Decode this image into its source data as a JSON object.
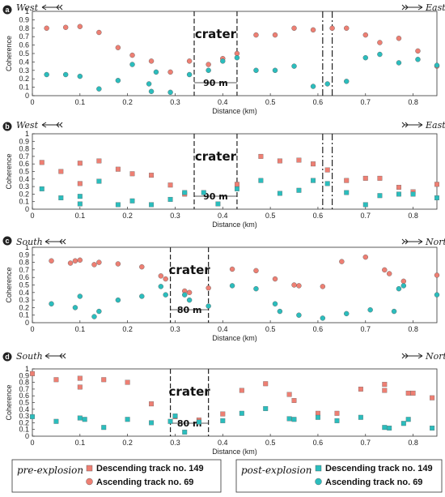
{
  "colors": {
    "descending": "#ee7f73",
    "ascending": "#ee7f73",
    "post": "#2bbdbd",
    "edge": "#555555"
  },
  "legend": {
    "pre_title": "pre-explosion",
    "post_title": "post-explosion",
    "pre_desc": "Descending track no. 149",
    "pre_asc": "Ascending track no. 69",
    "post_desc": "Descending track no. 149",
    "post_asc": "Ascending track no. 69"
  },
  "chart_data": [
    {
      "panel": "a",
      "type": "scatter",
      "marker": "circle",
      "left_dir": "West",
      "right_dir": "East",
      "xlabel": "Distance (km)",
      "ylabel": "Coherence",
      "xlim": [
        0,
        0.85
      ],
      "ylim": [
        0,
        1
      ],
      "xticks": [
        "0",
        "0.1",
        "0.2",
        "0.3",
        "0.4",
        "0.5",
        "0.6",
        "0.7",
        "0.8"
      ],
      "yticks": [
        "0",
        "0.1",
        "0.2",
        "0.3",
        "0.4",
        "0.5",
        "0.6",
        "0.7",
        "0.8",
        "0.9",
        "1"
      ],
      "crater_label": "crater",
      "width_label": "90 m",
      "crater_bounds": [
        0.34,
        0.43
      ],
      "extra_bounds": [
        0.61,
        0.63
      ],
      "series": [
        {
          "role": "pre",
          "x": [
            0.03,
            0.07,
            0.1,
            0.14,
            0.18,
            0.21,
            0.25,
            0.29,
            0.33,
            0.37,
            0.4,
            0.43,
            0.47,
            0.51,
            0.55,
            0.59,
            0.63,
            0.66,
            0.7,
            0.73,
            0.77,
            0.81,
            0.85
          ],
          "y": [
            0.8,
            0.81,
            0.82,
            0.75,
            0.57,
            0.48,
            0.41,
            0.28,
            0.41,
            0.37,
            0.44,
            0.5,
            0.72,
            0.72,
            0.8,
            0.78,
            0.8,
            0.8,
            0.72,
            0.63,
            0.68,
            0.53,
            0.35
          ]
        },
        {
          "role": "post",
          "x": [
            0.03,
            0.07,
            0.1,
            0.14,
            0.18,
            0.21,
            0.245,
            0.25,
            0.26,
            0.29,
            0.33,
            0.37,
            0.4,
            0.43,
            0.47,
            0.51,
            0.55,
            0.59,
            0.62,
            0.66,
            0.7,
            0.73,
            0.77,
            0.81,
            0.85
          ],
          "y": [
            0.25,
            0.25,
            0.23,
            0.08,
            0.18,
            0.37,
            0.14,
            0.05,
            0.28,
            0.04,
            0.25,
            0.3,
            0.41,
            0.45,
            0.3,
            0.3,
            0.35,
            0.11,
            0.14,
            0.17,
            0.45,
            0.49,
            0.39,
            0.43,
            0.36
          ]
        }
      ]
    },
    {
      "panel": "b",
      "type": "scatter",
      "marker": "square",
      "left_dir": "West",
      "right_dir": "East",
      "xlabel": "Distance (km)",
      "ylabel": "Coherence",
      "xlim": [
        0,
        0.85
      ],
      "ylim": [
        0,
        1
      ],
      "xticks": [
        "0",
        "0.1",
        "0.2",
        "0.3",
        "0.4",
        "0.5",
        "0.6",
        "0.7",
        "0.8"
      ],
      "yticks": [
        "0",
        "0.1",
        "0.2",
        "0.3",
        "0.4",
        "0.5",
        "0.6",
        "0.7",
        "0.8",
        "0.9",
        "1"
      ],
      "crater_label": "crater",
      "width_label": "90 m",
      "crater_bounds": [
        0.34,
        0.43
      ],
      "extra_bounds": [
        0.61,
        0.63
      ],
      "series": [
        {
          "role": "pre",
          "x": [
            0.02,
            0.06,
            0.1,
            0.1,
            0.14,
            0.18,
            0.21,
            0.25,
            0.29,
            0.32,
            0.43,
            0.48,
            0.52,
            0.56,
            0.59,
            0.62,
            0.66,
            0.7,
            0.73,
            0.77,
            0.8,
            0.85
          ],
          "y": [
            0.62,
            0.5,
            0.61,
            0.34,
            0.64,
            0.53,
            0.47,
            0.45,
            0.32,
            0.2,
            0.33,
            0.7,
            0.64,
            0.65,
            0.6,
            0.52,
            0.38,
            0.41,
            0.41,
            0.29,
            0.23,
            0.33
          ]
        },
        {
          "role": "post",
          "x": [
            0.02,
            0.06,
            0.1,
            0.1,
            0.14,
            0.18,
            0.21,
            0.25,
            0.29,
            0.32,
            0.36,
            0.39,
            0.43,
            0.48,
            0.52,
            0.56,
            0.59,
            0.62,
            0.66,
            0.7,
            0.73,
            0.77,
            0.8,
            0.85
          ],
          "y": [
            0.27,
            0.15,
            0.07,
            0.17,
            0.37,
            0.06,
            0.11,
            0.06,
            0.13,
            0.22,
            0.22,
            0.07,
            0.27,
            0.38,
            0.21,
            0.25,
            0.38,
            0.34,
            0.22,
            0.06,
            0.18,
            0.2,
            0.2,
            0.15
          ]
        }
      ]
    },
    {
      "panel": "c",
      "type": "scatter",
      "marker": "circle",
      "left_dir": "South",
      "right_dir": "North",
      "xlabel": "Distance (km)",
      "ylabel": "Coherence",
      "xlim": [
        0,
        0.85
      ],
      "ylim": [
        0,
        1
      ],
      "xticks": [
        "0",
        "0.1",
        "0.2",
        "0.3",
        "0.4",
        "0.5",
        "0.6",
        "0.7",
        "0.8"
      ],
      "yticks": [
        "0",
        "0.1",
        "0.2",
        "0.3",
        "0.4",
        "0.5",
        "0.6",
        "0.7",
        "0.8",
        "0.9",
        "1"
      ],
      "crater_label": "crater",
      "width_label": "80 m",
      "crater_bounds": [
        0.29,
        0.37
      ],
      "extra_bounds": [],
      "series": [
        {
          "role": "pre",
          "x": [
            0.04,
            0.08,
            0.09,
            0.1,
            0.13,
            0.14,
            0.18,
            0.23,
            0.27,
            0.28,
            0.32,
            0.33,
            0.37,
            0.42,
            0.47,
            0.51,
            0.55,
            0.56,
            0.61,
            0.65,
            0.7,
            0.74,
            0.75,
            0.78,
            0.85
          ],
          "y": [
            0.82,
            0.79,
            0.82,
            0.83,
            0.77,
            0.8,
            0.78,
            0.74,
            0.62,
            0.58,
            0.42,
            0.4,
            0.46,
            0.71,
            0.69,
            0.58,
            0.5,
            0.49,
            0.48,
            0.81,
            0.87,
            0.7,
            0.65,
            0.55,
            0.63
          ]
        },
        {
          "role": "post",
          "x": [
            0.04,
            0.09,
            0.1,
            0.13,
            0.14,
            0.18,
            0.23,
            0.27,
            0.28,
            0.32,
            0.33,
            0.37,
            0.42,
            0.47,
            0.51,
            0.52,
            0.56,
            0.61,
            0.66,
            0.71,
            0.76,
            0.77,
            0.78,
            0.85
          ],
          "y": [
            0.25,
            0.2,
            0.35,
            0.08,
            0.15,
            0.3,
            0.35,
            0.48,
            0.37,
            0.37,
            0.3,
            0.22,
            0.49,
            0.45,
            0.25,
            0.15,
            0.1,
            0.06,
            0.12,
            0.17,
            0.15,
            0.45,
            0.49,
            0.37
          ]
        }
      ]
    },
    {
      "panel": "d",
      "type": "scatter",
      "marker": "square",
      "left_dir": "South",
      "right_dir": "North",
      "xlabel": "Distance (km)",
      "ylabel": "Coherence",
      "xlim": [
        0,
        0.85
      ],
      "ylim": [
        0,
        1
      ],
      "xticks": [
        "0",
        "0.1",
        "0.2",
        "0.3",
        "0.4",
        "0.5",
        "0.6",
        "0.7",
        "0.8"
      ],
      "yticks": [
        "0",
        "0.1",
        "0.2",
        "0.3",
        "0.4",
        "0.5",
        "0.6",
        "0.7",
        "0.8",
        "0.9",
        "1"
      ],
      "crater_label": "crater",
      "width_label": "80 m",
      "crater_bounds": [
        0.29,
        0.37
      ],
      "extra_bounds": [],
      "series": [
        {
          "role": "pre",
          "x": [
            0.0,
            0.05,
            0.1,
            0.1,
            0.15,
            0.2,
            0.25,
            0.3,
            0.35,
            0.4,
            0.44,
            0.49,
            0.54,
            0.55,
            0.6,
            0.64,
            0.69,
            0.74,
            0.74,
            0.79,
            0.8,
            0.84
          ],
          "y": [
            0.93,
            0.84,
            0.86,
            0.73,
            0.84,
            0.8,
            0.48,
            0.29,
            0.24,
            0.33,
            0.68,
            0.78,
            0.62,
            0.53,
            0.34,
            0.34,
            0.7,
            0.68,
            0.77,
            0.64,
            0.64,
            0.57
          ]
        },
        {
          "role": "post",
          "x": [
            0.0,
            0.05,
            0.1,
            0.11,
            0.15,
            0.2,
            0.25,
            0.29,
            0.3,
            0.32,
            0.35,
            0.4,
            0.44,
            0.49,
            0.54,
            0.55,
            0.6,
            0.64,
            0.69,
            0.74,
            0.75,
            0.78,
            0.79,
            0.84
          ],
          "y": [
            0.29,
            0.22,
            0.27,
            0.25,
            0.13,
            0.25,
            0.2,
            0.22,
            0.3,
            0.06,
            0.21,
            0.23,
            0.34,
            0.41,
            0.26,
            0.25,
            0.28,
            0.23,
            0.28,
            0.13,
            0.12,
            0.19,
            0.25,
            0.12
          ]
        }
      ]
    }
  ]
}
